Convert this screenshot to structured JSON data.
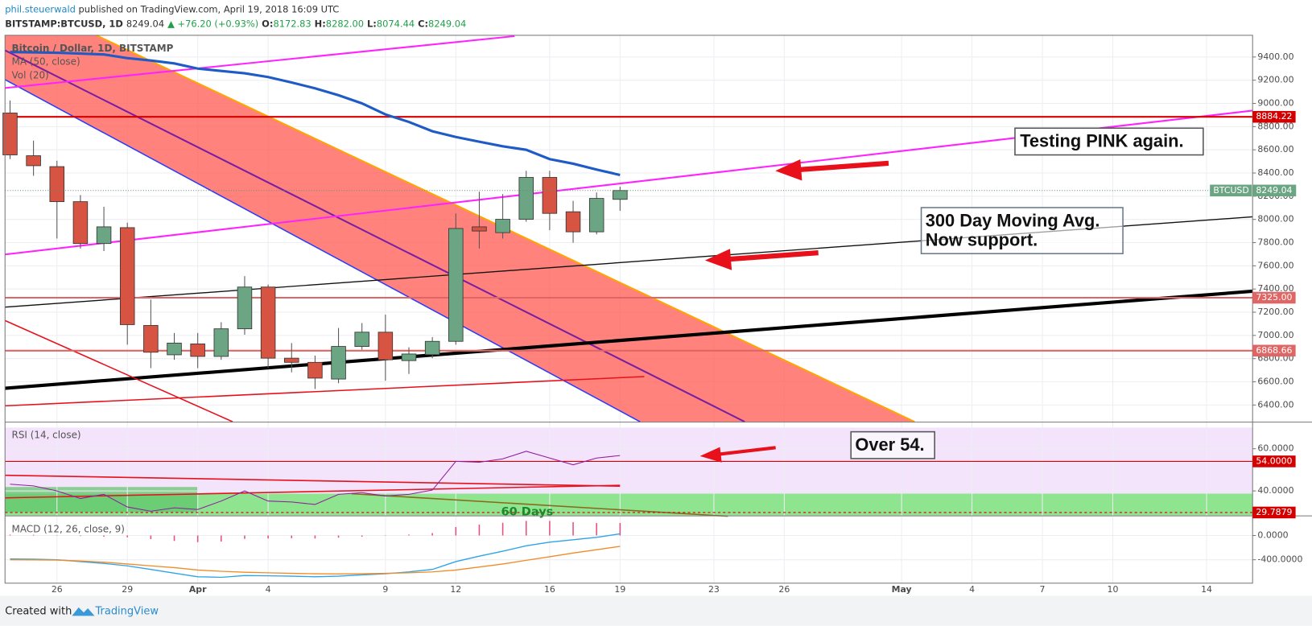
{
  "header": {
    "user": "phil.steuerwald",
    "published": "published on TradingView.com, April 19, 2018 16:09 UTC",
    "symbol": "BITSTAMP:BTCUSD, 1D",
    "last": "8249.04",
    "change": "▲ +76.20 (+0.93%)",
    "ohlc": [
      {
        "key": "O:",
        "value": "8172.83"
      },
      {
        "key": "H:",
        "value": "8282.00"
      },
      {
        "key": "L:",
        "value": "8074.44"
      },
      {
        "key": "C:",
        "value": "8249.04"
      }
    ]
  },
  "footer": {
    "created": "Created with",
    "brand": "TradingView"
  },
  "chart_data": [
    {
      "type": "candlestick",
      "legend": [
        "Bitcoin / Dollar, 1D, BITSTAMP",
        "MA (50, close)",
        "Vol (20)"
      ],
      "categories": [
        null,
        null,
        "26",
        null,
        null,
        "29",
        null,
        null,
        "Apr",
        null,
        null,
        "4",
        null,
        null,
        null,
        null,
        "9",
        null,
        null,
        "12",
        null,
        null,
        null,
        "16",
        null,
        null,
        "19",
        null,
        null,
        null,
        "23",
        null,
        null,
        "26",
        null,
        null,
        null,
        null,
        "May",
        null,
        null,
        "4",
        null,
        null,
        "7",
        null,
        null,
        "10",
        null,
        null,
        null,
        "14",
        null
      ],
      "open": [
        8917,
        8549,
        8455,
        8153,
        7792,
        7929,
        7086,
        6833,
        6927,
        6819,
        7057,
        7417,
        6804,
        6768,
        6624,
        6905,
        7028,
        6783,
        6834,
        6949,
        7936,
        7886,
        8001,
        8362,
        8066,
        7893,
        8172.83,
        null,
        null,
        null,
        null,
        null,
        null,
        null,
        null,
        null,
        null,
        null,
        null,
        null,
        null,
        null,
        null,
        null,
        null,
        null,
        null,
        null,
        null,
        null,
        null,
        null,
        null
      ],
      "high": [
        9025,
        8679,
        8506,
        8210,
        8109,
        7972,
        7309,
        7021,
        7021,
        7114,
        7511,
        7439,
        6934,
        6826,
        7064,
        7107,
        7179,
        6898,
        6985,
        8052,
        8239,
        8218,
        8419,
        8419,
        8160,
        8232,
        8282,
        null,
        null,
        null,
        null,
        null,
        null,
        null,
        null,
        null,
        null,
        null,
        null,
        null,
        null,
        null,
        null,
        null,
        null,
        null,
        null,
        null,
        null,
        null,
        null,
        null,
        null
      ],
      "low": [
        8520,
        8376,
        7835,
        7749,
        7727,
        6920,
        6718,
        6790,
        6718,
        6790,
        7006,
        6718,
        6682,
        6538,
        6588,
        6877,
        6610,
        6668,
        6804,
        6920,
        7749,
        7835,
        7980,
        7907,
        7799,
        7871,
        8074.44,
        null,
        null,
        null,
        null,
        null,
        null,
        null,
        null,
        null,
        null,
        null,
        null,
        null,
        null,
        null,
        null,
        null,
        null,
        null,
        null,
        null,
        null,
        null,
        null,
        null,
        null
      ],
      "close": [
        8556,
        8463,
        8153,
        7792,
        7936,
        7093,
        6855,
        6934,
        6819,
        7057,
        7417,
        6804,
        6768,
        6632,
        6905,
        7028,
        6790,
        6840,
        6949,
        7922,
        7900,
        8001,
        8362,
        8052,
        7893,
        8181,
        8249.04,
        null,
        null,
        null,
        null,
        null,
        null,
        null,
        null,
        null,
        null,
        null,
        null,
        null,
        null,
        null,
        null,
        null,
        null,
        null,
        null,
        null,
        null,
        null,
        null,
        null,
        null
      ],
      "up_color": "#6ba583",
      "down_color": "#d75442",
      "ma": {
        "color": "#1e5bc6",
        "values": [
          9443,
          9440,
          9436,
          9430,
          9422,
          9390,
          9370,
          9345,
          9300,
          9280,
          9260,
          9227,
          9180,
          9130,
          9070,
          9000,
          8905,
          8840,
          8760,
          8710,
          8670,
          8630,
          8600,
          8520,
          8480,
          8430,
          8383,
          null,
          null,
          null,
          null,
          null,
          null,
          null,
          null,
          null,
          null,
          null,
          null,
          null,
          null,
          null,
          null,
          null,
          null,
          null,
          null,
          null,
          null,
          null,
          null,
          null,
          null
        ]
      },
      "ylim": [
        6256,
        9587
      ],
      "yticks": [
        {
          "value": 6400,
          "label": "6400.00"
        },
        {
          "value": 6600,
          "label": "6600.00"
        },
        {
          "value": 6800,
          "label": "6800.00"
        },
        {
          "value": 7000,
          "label": "7000.00"
        },
        {
          "value": 7200,
          "label": "7200.00"
        },
        {
          "value": 7400,
          "label": "7400.00"
        },
        {
          "value": 7600,
          "label": "7600.00"
        },
        {
          "value": 7800,
          "label": "7800.00"
        },
        {
          "value": 8000,
          "label": "8000.00"
        },
        {
          "value": 8200,
          "label": "8200.00"
        },
        {
          "value": 8400,
          "label": "8400.00"
        },
        {
          "value": 8600,
          "label": "8600.00"
        },
        {
          "value": 8800,
          "label": "8800.00"
        },
        {
          "value": 9000,
          "label": "9000.00"
        },
        {
          "value": 9200,
          "label": "9200.00"
        },
        {
          "value": 9400,
          "label": "9400.00"
        }
      ],
      "price_lines": [
        {
          "value": 8884.22,
          "color": "#d40000"
        },
        {
          "value": 7325,
          "label": "7325.00",
          "color": "#e06666"
        },
        {
          "value": 6868.66,
          "color": "#e06666"
        }
      ],
      "last_price": {
        "symbol": "BTCUSD",
        "value": 8249.04,
        "color": "#6ba583"
      },
      "annotations": {
        "pink": "Testing PINK again.",
        "ma300": [
          "300 Day Moving Avg.",
          "Now support."
        ]
      }
    },
    {
      "type": "line",
      "title": "RSI (14, close)",
      "color": "#8e1e9e",
      "values": [
        43.2,
        42.4,
        40,
        36.4,
        38.4,
        32.4,
        30.4,
        32,
        31.2,
        35.2,
        40,
        35.2,
        34.8,
        33.6,
        38.4,
        39.2,
        37.6,
        38.4,
        40.4,
        54,
        53.6,
        55.2,
        58.8,
        55.6,
        52.4,
        55.6,
        56.8,
        null,
        null,
        null,
        null,
        null,
        null,
        null,
        null,
        null,
        null,
        null,
        null,
        null,
        null,
        null,
        null,
        null,
        null,
        null,
        null,
        null,
        null,
        null,
        null,
        null,
        null
      ],
      "ylim": [
        28.4,
        72.4
      ],
      "yticks": [
        {
          "value": 40,
          "label": "40.0000"
        },
        {
          "value": 60,
          "label": "60.0000"
        }
      ],
      "levels": [
        {
          "value": 54,
          "label": "54.0000",
          "color": "#d40000"
        },
        {
          "value": 29.7879,
          "label": "29.7879",
          "color": "#d40000"
        }
      ],
      "annotations": {
        "over": "Over 54.",
        "days": "60 Days"
      }
    },
    {
      "type": "macd",
      "title": "MACD (12, 26, close, 9)",
      "macd": {
        "color": "#2ea3e8",
        "values": [
          -386,
          -390,
          -400,
          -430,
          -460,
          -500,
          -560,
          -620,
          -680,
          -690,
          -660,
          -665,
          -670,
          -680,
          -670,
          -650,
          -630,
          -600,
          -560,
          -430,
          -340,
          -260,
          -170,
          -110,
          -70,
          -30,
          28,
          null,
          null,
          null,
          null,
          null,
          null,
          null,
          null,
          null,
          null,
          null,
          null,
          null,
          null,
          null,
          null,
          null,
          null,
          null,
          null,
          null,
          null,
          null,
          null,
          null,
          null
        ]
      },
      "signal": {
        "color": "#f08c28",
        "values": [
          -400,
          -402,
          -405,
          -420,
          -440,
          -470,
          -500,
          -530,
          -570,
          -590,
          -605,
          -615,
          -625,
          -630,
          -634,
          -630,
          -625,
          -615,
          -600,
          -570,
          -520,
          -470,
          -410,
          -350,
          -290,
          -235,
          -179,
          null,
          null,
          null,
          null,
          null,
          null,
          null,
          null,
          null,
          null,
          null,
          null,
          null,
          null,
          null,
          null,
          null,
          null,
          null,
          null,
          null,
          null,
          null,
          null,
          null,
          null
        ]
      },
      "histogram": {
        "color": "#e8507a",
        "values": [
          14,
          12,
          5,
          -10,
          -20,
          -30,
          -60,
          -90,
          -110,
          -100,
          -55,
          -50,
          -45,
          -50,
          -36,
          -20,
          -5,
          15,
          40,
          140,
          180,
          210,
          240,
          240,
          220,
          205,
          207,
          null,
          null,
          null,
          null,
          null,
          null,
          null,
          null,
          null,
          null,
          null,
          null,
          null,
          null,
          null,
          null,
          null,
          null,
          null,
          null,
          null,
          null,
          null,
          null,
          null,
          null
        ]
      },
      "ylim": [
        -786,
        317
      ],
      "yticks": [
        {
          "value": -400,
          "label": "-400.0000"
        },
        {
          "value": 0,
          "label": "0.0000"
        }
      ]
    }
  ]
}
